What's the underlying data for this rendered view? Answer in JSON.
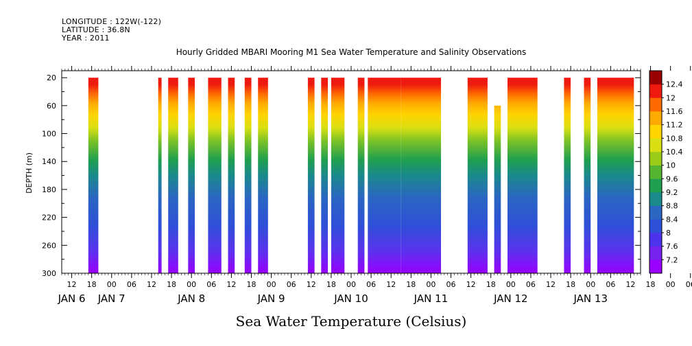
{
  "header": {
    "longitude": "LONGITUDE : 122W(-122)",
    "latitude": "LATITUDE : 36.8N",
    "year": "YEAR : 2011"
  },
  "chart_data": {
    "type": "heatmap",
    "title": "Hourly Gridded MBARI Mooring M1 Sea Water Temperature and Salinity Observations",
    "xlabel": "",
    "ylabel": "DEPTH (m)",
    "colorbar_label": "Sea Water Temperature (Celsius)",
    "x_start": "JAN 6 09:00",
    "x_end": "JAN 13 15:00",
    "x_hour_tick_labels": [
      "12",
      "18",
      "00",
      "06",
      "12",
      "18",
      "00",
      "06",
      "12",
      "18",
      "00",
      "06",
      "12",
      "18",
      "00",
      "06",
      "12",
      "18",
      "00",
      "06",
      "12",
      "18",
      "00",
      "06",
      "12",
      "18",
      "00",
      "06",
      "12",
      "18",
      "00",
      "06"
    ],
    "x_day_labels": [
      "JAN 6",
      "JAN 7",
      "JAN 8",
      "JAN 9",
      "JAN 10",
      "JAN 11",
      "JAN 12",
      "JAN 13"
    ],
    "y_tick_labels": [
      "20",
      "60",
      "100",
      "140",
      "180",
      "220",
      "260",
      "300"
    ],
    "ylim": [
      300,
      10
    ],
    "colorbar_levels": [
      7.2,
      7.6,
      8,
      8.4,
      8.8,
      9.2,
      9.6,
      10,
      10.4,
      10.8,
      11.2,
      11.6,
      12,
      12.4
    ],
    "colorbar_tick_labels": [
      "7.2",
      "7.6",
      "8",
      "8.4",
      "8.8",
      "9.2",
      "9.6",
      "10",
      "10.4",
      "10.8",
      "11.2",
      "11.6",
      "12",
      "12.4"
    ],
    "colors": [
      "#9900ff",
      "#7722ee",
      "#4d33ee",
      "#2f4fd8",
      "#2a66c2",
      "#1a8a8a",
      "#1f9f4f",
      "#55b531",
      "#9ccb1a",
      "#d8df12",
      "#ffd400",
      "#ffaa00",
      "#ff6a00",
      "#ee1a10",
      "#990000"
    ],
    "data_segments": [
      {
        "start": "JAN 6 17:00",
        "end": "JAN 6 20:00",
        "top_depth": 20
      },
      {
        "start": "JAN 7 14:00",
        "end": "JAN 7 15:00",
        "top_depth": 20
      },
      {
        "start": "JAN 7 17:00",
        "end": "JAN 7 20:00",
        "top_depth": 20
      },
      {
        "start": "JAN 7 23:00",
        "end": "JAN 8 01:00",
        "top_depth": 20
      },
      {
        "start": "JAN 8 05:00",
        "end": "JAN 8 09:00",
        "top_depth": 20
      },
      {
        "start": "JAN 8 11:00",
        "end": "JAN 8 13:00",
        "top_depth": 20
      },
      {
        "start": "JAN 8 16:00",
        "end": "JAN 8 18:00",
        "top_depth": 20
      },
      {
        "start": "JAN 8 20:00",
        "end": "JAN 8 23:00",
        "top_depth": 20
      },
      {
        "start": "JAN 9 11:00",
        "end": "JAN 9 13:00",
        "top_depth": 20
      },
      {
        "start": "JAN 9 15:00",
        "end": "JAN 9 17:00",
        "top_depth": 20
      },
      {
        "start": "JAN 9 18:00",
        "end": "JAN 9 22:00",
        "top_depth": 20
      },
      {
        "start": "JAN 10 02:00",
        "end": "JAN 10 04:00",
        "top_depth": 20
      },
      {
        "start": "JAN 10 05:00",
        "end": "JAN 10 15:00",
        "top_depth": 20
      },
      {
        "start": "JAN 10 15:00",
        "end": "JAN 11 03:00",
        "top_depth": 20
      },
      {
        "start": "JAN 11 11:00",
        "end": "JAN 11 17:00",
        "top_depth": 20
      },
      {
        "start": "JAN 11 19:00",
        "end": "JAN 11 21:00",
        "top_depth": 60
      },
      {
        "start": "JAN 11 23:00",
        "end": "JAN 12 08:00",
        "top_depth": 20
      },
      {
        "start": "JAN 12 16:00",
        "end": "JAN 12 18:00",
        "top_depth": 20
      },
      {
        "start": "JAN 12 22:00",
        "end": "JAN 13 00:00",
        "top_depth": 20
      },
      {
        "start": "JAN 13 02:00",
        "end": "JAN 13 13:00",
        "top_depth": 20
      }
    ],
    "grid": false,
    "legend": "right colorbar"
  }
}
